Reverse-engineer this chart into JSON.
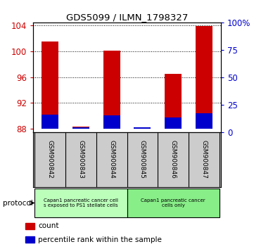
{
  "title": "GDS5099 / ILMN_1798327",
  "samples": [
    "GSM900842",
    "GSM900843",
    "GSM900844",
    "GSM900845",
    "GSM900846",
    "GSM900847"
  ],
  "counts": [
    101.5,
    88.35,
    100.1,
    88.2,
    96.5,
    103.9
  ],
  "percentiles": [
    13,
    1,
    12,
    1,
    10,
    14
  ],
  "ylim_left": [
    87.5,
    104.5
  ],
  "ylim_right": [
    0,
    100
  ],
  "yticks_left": [
    88,
    92,
    96,
    100,
    104
  ],
  "yticks_right": [
    0,
    25,
    50,
    75,
    100
  ],
  "yticklabels_right": [
    "0",
    "25",
    "50",
    "75",
    "100%"
  ],
  "bar_width": 0.55,
  "bar_color_red": "#cc0000",
  "bar_color_blue": "#0000cc",
  "left_tick_color": "#cc0000",
  "right_tick_color": "#0000cc",
  "groups": [
    {
      "label": "Capan1 pancreatic cancer cell\ns exposed to PS1 stellate cells",
      "color": "#bbffbb"
    },
    {
      "label": "Capan1 pancreatic cancer\ncells only",
      "color": "#88ee88"
    }
  ],
  "protocol_label": "protocol",
  "legend_items": [
    {
      "color": "#cc0000",
      "label": "count"
    },
    {
      "color": "#0000cc",
      "label": "percentile rank within the sample"
    }
  ],
  "bg_color": "#cccccc",
  "plot_bg": "#ffffff",
  "base_value": 88.0,
  "pct_scale": 17.0,
  "group_split": 3
}
